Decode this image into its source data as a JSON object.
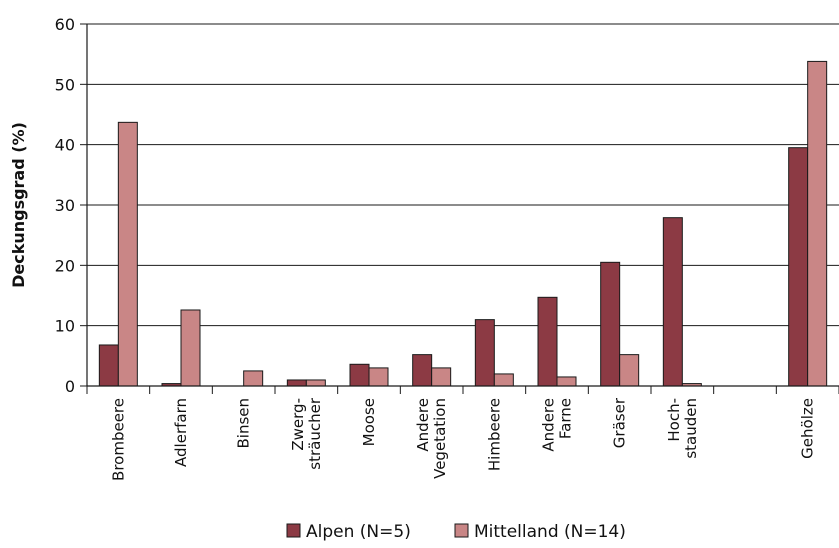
{
  "chart_data": {
    "type": "bar",
    "title": "",
    "xlabel": "",
    "ylabel": "Deckungsgrad (%)",
    "ylim": [
      0,
      60
    ],
    "yticks": [
      0,
      10,
      20,
      30,
      40,
      50,
      60
    ],
    "grid": true,
    "legend_position": "bottom",
    "categories": [
      [
        "Brombeere"
      ],
      [
        "Adlerfarn"
      ],
      [
        "Binsen"
      ],
      [
        "Zwerg-",
        "sträucher"
      ],
      [
        "Moose"
      ],
      [
        "Andere",
        "Vegetation"
      ],
      [
        "Himbeere"
      ],
      [
        "Andere",
        "Farne"
      ],
      [
        "Gräser"
      ],
      [
        "Hoch-",
        "stauden"
      ],
      [],
      [
        "Gehölze"
      ]
    ],
    "series": [
      {
        "name": "Alpen (N=5)",
        "color": "#8c3a44",
        "values": [
          6.8,
          0.4,
          0,
          1.0,
          3.6,
          5.2,
          11.0,
          14.7,
          20.5,
          27.9,
          0,
          39.5
        ]
      },
      {
        "name": "Mittelland (N=14)",
        "color": "#c98686",
        "values": [
          43.7,
          12.6,
          2.5,
          1.0,
          3.0,
          3.0,
          2.0,
          1.5,
          5.2,
          0.4,
          0,
          53.8
        ]
      }
    ]
  }
}
